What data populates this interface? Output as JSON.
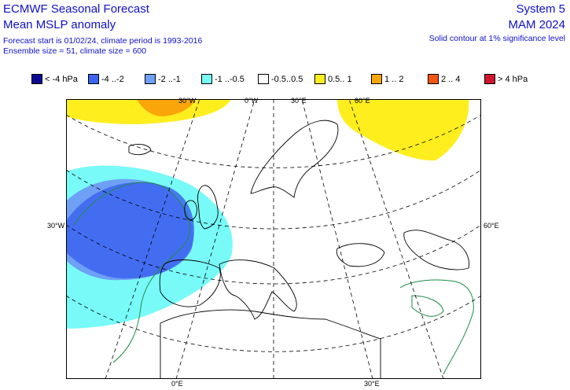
{
  "header": {
    "title": "ECMWF Seasonal Forecast",
    "subtitle": "Mean MSLP anomaly",
    "forecast_info": "Forecast start is 01/02/24, climate period is 1993-2016",
    "ensemble_info": "Ensemble size = 51, climate size = 600",
    "system": "System 5",
    "season": "MAM 2024",
    "contour_note": "Solid contour at 1% significance level"
  },
  "legend": [
    {
      "label": "< -4 hPa",
      "color": "#0a0a96"
    },
    {
      "label": "-4 ..-2",
      "color": "#3c64f0"
    },
    {
      "label": "-2 ..-1",
      "color": "#6ea0f5"
    },
    {
      "label": "-1 ..-0.5",
      "color": "#78faf8"
    },
    {
      "label": "-0.5..0.5",
      "color": "#ffffff"
    },
    {
      "label": "0.5.. 1",
      "color": "#ffee1e"
    },
    {
      "label": "1 .. 2",
      "color": "#faa50a"
    },
    {
      "label": "2 .. 4",
      "color": "#f55514"
    },
    {
      "label": "> 4 hPa",
      "color": "#d2142d"
    }
  ],
  "map_labels": {
    "lon_top": [
      "30°W",
      "0°W",
      "30°E",
      "60°E"
    ],
    "lat_left": "30°W",
    "lat_right": "60°E",
    "lon_bottom": [
      "0°E",
      "30°E"
    ]
  }
}
